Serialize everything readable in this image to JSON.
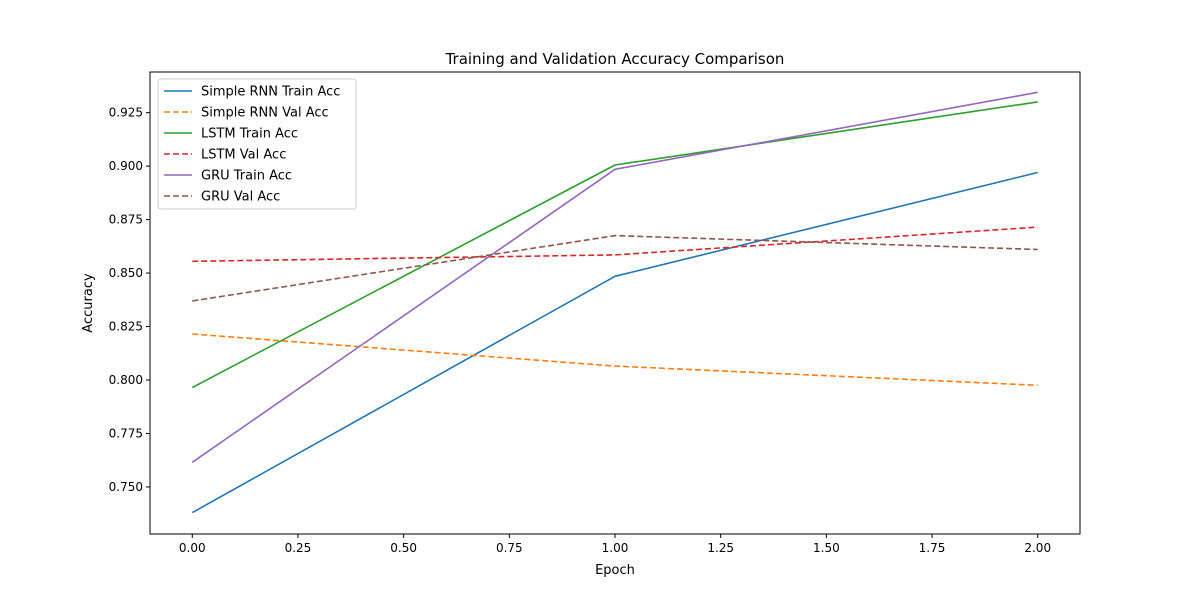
{
  "chart_data": {
    "type": "line",
    "title": "Training and Validation Accuracy Comparison",
    "xlabel": "Epoch",
    "ylabel": "Accuracy",
    "x": [
      0,
      1,
      2
    ],
    "xlim": [
      -0.1,
      2.1
    ],
    "ylim": [
      0.728,
      0.944
    ],
    "xticks": [
      0.0,
      0.25,
      0.5,
      0.75,
      1.0,
      1.25,
      1.5,
      1.75,
      2.0
    ],
    "xtick_labels": [
      "0.00",
      "0.25",
      "0.50",
      "0.75",
      "1.00",
      "1.25",
      "1.50",
      "1.75",
      "2.00"
    ],
    "yticks": [
      0.75,
      0.775,
      0.8,
      0.825,
      0.85,
      0.875,
      0.9,
      0.925
    ],
    "ytick_labels": [
      "0.750",
      "0.775",
      "0.800",
      "0.825",
      "0.850",
      "0.875",
      "0.900",
      "0.925"
    ],
    "grid": false,
    "legend_position": "top-left",
    "series": [
      {
        "name": "Simple RNN Train Acc",
        "values": [
          0.738,
          0.8485,
          0.897
        ],
        "color": "#1f77b4",
        "dashed": false
      },
      {
        "name": "Simple RNN Val Acc",
        "values": [
          0.8215,
          0.8065,
          0.7975
        ],
        "color": "#ff7f0e",
        "dashed": true
      },
      {
        "name": "LSTM Train Acc",
        "values": [
          0.7965,
          0.9005,
          0.93
        ],
        "color": "#2ca02c",
        "dashed": false
      },
      {
        "name": "LSTM Val Acc",
        "values": [
          0.8555,
          0.8585,
          0.8715
        ],
        "color": "#d62728",
        "dashed": true
      },
      {
        "name": "GRU Train Acc",
        "values": [
          0.7615,
          0.8985,
          0.9345
        ],
        "color": "#9467bd",
        "dashed": false
      },
      {
        "name": "GRU Val Acc",
        "values": [
          0.837,
          0.8675,
          0.861
        ],
        "color": "#8c564b",
        "dashed": true
      }
    ]
  }
}
